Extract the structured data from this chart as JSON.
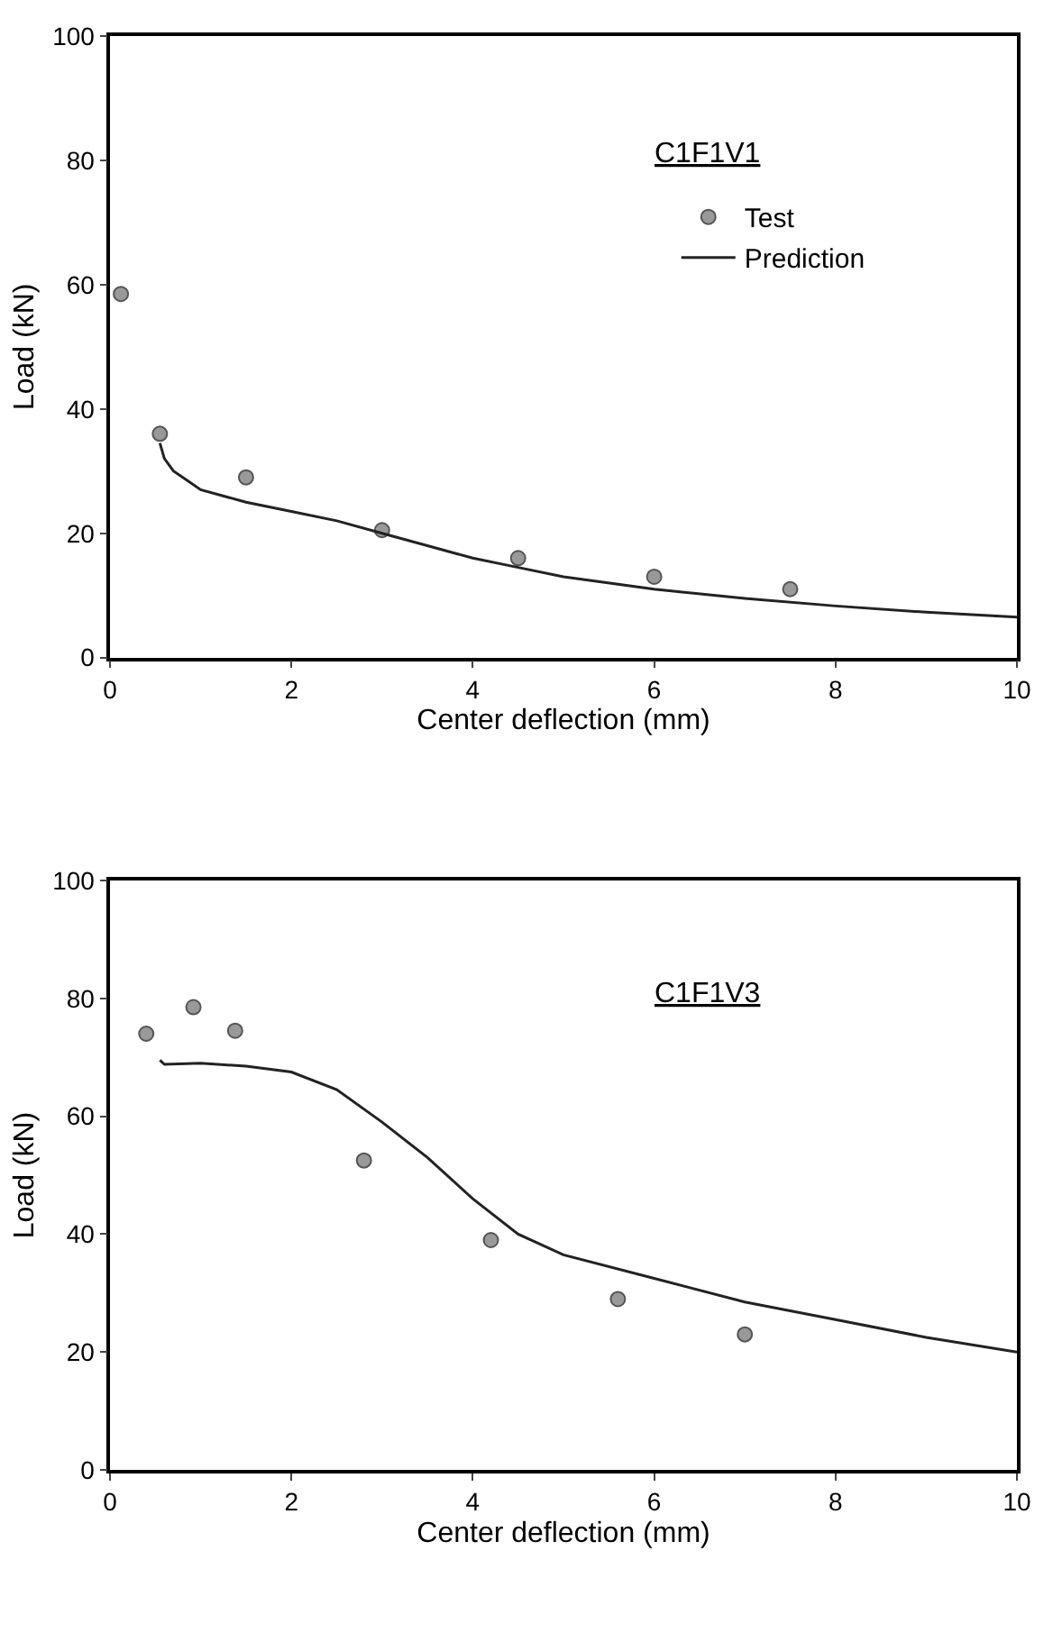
{
  "chart_data": [
    {
      "type": "scatter",
      "annotations": [
        "C1F1V1"
      ],
      "xlabel": "Center deflection (mm)",
      "ylabel": "Load (kN)",
      "xlim": [
        0,
        10
      ],
      "ylim": [
        0,
        100
      ],
      "xticks": [
        0,
        2,
        4,
        6,
        8,
        10
      ],
      "yticks": [
        0,
        20,
        40,
        60,
        80,
        100
      ],
      "legend": "top right",
      "series": [
        {
          "name": "Test",
          "color": "#999999",
          "marker": "circle",
          "x": [
            0.12,
            0.55,
            1.5,
            3.0,
            4.5,
            6.0,
            7.5
          ],
          "values": [
            58.5,
            36,
            29,
            20.5,
            16,
            13,
            11
          ]
        },
        {
          "name": "Prediction",
          "type": "line",
          "color": "#222222",
          "marker": "none",
          "line_style": "solid",
          "x": [
            0.55,
            0.6,
            0.7,
            0.85,
            1.0,
            1.5,
            2.0,
            2.5,
            3.0,
            3.5,
            4.0,
            4.5,
            5.0,
            6.0,
            7.0,
            8.0,
            9.0,
            10.0
          ],
          "values": [
            34.5,
            32,
            30,
            28.5,
            27,
            25,
            23.5,
            22,
            20,
            18,
            16,
            14.5,
            13,
            11,
            9.5,
            8.3,
            7.3,
            6.5
          ]
        }
      ]
    },
    {
      "type": "scatter",
      "annotations": [
        "C1F1V3"
      ],
      "xlabel": "Center deflection (mm)",
      "ylabel": "Load (kN)",
      "xlim": [
        0,
        10
      ],
      "ylim": [
        0,
        100
      ],
      "xticks": [
        0,
        2,
        4,
        6,
        8,
        10
      ],
      "yticks": [
        0,
        20,
        40,
        60,
        80,
        100
      ],
      "legend": false,
      "series": [
        {
          "color": "#999999",
          "marker": "circle",
          "x": [
            0.4,
            0.92,
            1.38,
            2.8,
            4.2,
            5.6,
            7.0
          ],
          "values": [
            74,
            78.5,
            74.5,
            52.5,
            39,
            29,
            23
          ]
        },
        {
          "type": "line",
          "color": "#222222",
          "marker": "none",
          "line_style": "solid",
          "x": [
            0.55,
            0.6,
            1.0,
            1.5,
            2.0,
            2.5,
            3.0,
            3.5,
            4.0,
            4.5,
            5.0,
            6.0,
            7.0,
            8.0,
            9.0,
            10.0
          ],
          "values": [
            69.5,
            68.8,
            69,
            68.5,
            67.5,
            64.5,
            59,
            53,
            46,
            40,
            36.5,
            32.5,
            28.5,
            25.5,
            22.5,
            20
          ]
        }
      ]
    }
  ]
}
